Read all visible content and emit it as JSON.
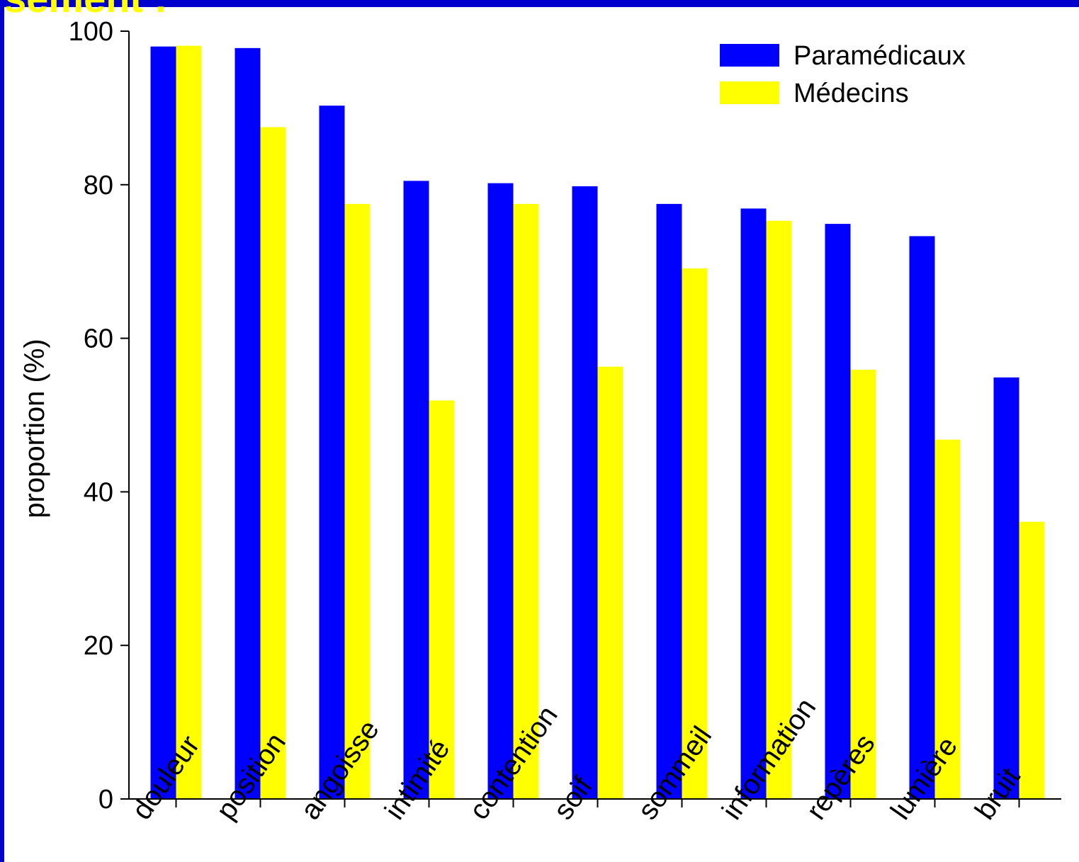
{
  "slide": {
    "heading_fragment": "sement :"
  },
  "colors": {
    "background": "#0000cc",
    "series_1": "#0000ff",
    "series_2": "#ffff00"
  },
  "chart_data": {
    "type": "bar",
    "title": "",
    "xlabel": "",
    "ylabel": "proportion (%)",
    "ylim": [
      0,
      100
    ],
    "yticks": [
      0,
      20,
      40,
      60,
      80,
      100
    ],
    "grid": false,
    "legend_position": "top-right",
    "categories": [
      "douleur",
      "position",
      "angoisse",
      "intimité",
      "contention",
      "soif",
      "sommeil",
      "information",
      "repères",
      "lumière",
      "bruit"
    ],
    "series": [
      {
        "name": "Paramédicaux",
        "color": "#0000ff",
        "values": [
          98,
          97.8,
          90.3,
          80.5,
          80.2,
          79.8,
          77.5,
          76.9,
          74.9,
          73.3,
          54.9
        ]
      },
      {
        "name": "Médecins",
        "color": "#ffff00",
        "values": [
          98.1,
          87.5,
          77.5,
          51.9,
          77.5,
          56.3,
          69.1,
          75.3,
          55.9,
          46.8,
          36.1
        ]
      }
    ]
  }
}
